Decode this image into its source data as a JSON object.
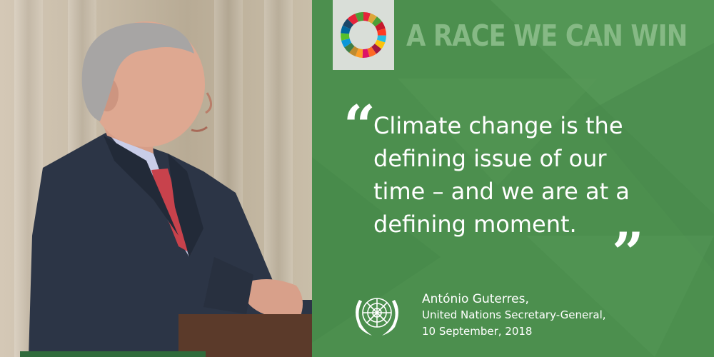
{
  "panel": {
    "tagline": "A RACE WE CAN WIN",
    "quote": {
      "open_mark": "“",
      "close_mark": "”",
      "lines": [
        "Climate change is the",
        "defining issue of our",
        "time – and we are at a",
        "defining moment."
      ]
    },
    "attribution": {
      "name": "António Guterres,",
      "role": "United Nations Secretary-General,",
      "date": "10 September, 2018"
    },
    "icons": {
      "sdg_wheel": "sdg-wheel-icon",
      "un_emblem": "un-emblem-icon"
    },
    "colors": {
      "panel_bg": "#4c8f4e",
      "tagline": "#86b985",
      "text": "#ffffff"
    }
  }
}
